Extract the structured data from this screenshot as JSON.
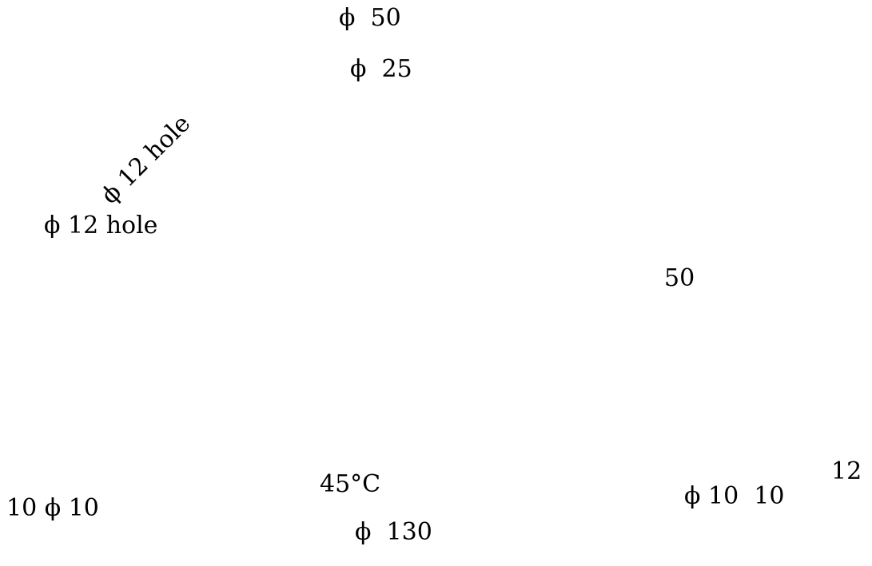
{
  "diagram": {
    "labels": {
      "phi_50": "ϕ  50",
      "phi_25": "ϕ  25",
      "phi_12_hole_angled": "ϕ 12 hole",
      "phi_12_hole": "ϕ 12 hole",
      "dim_50": "50",
      "angle_45": "45°C",
      "dim_12": "12",
      "phi_10_10_left": "10 ϕ 10",
      "phi_10_10_right": "ϕ 10  10",
      "phi_130": "ϕ  130"
    }
  }
}
